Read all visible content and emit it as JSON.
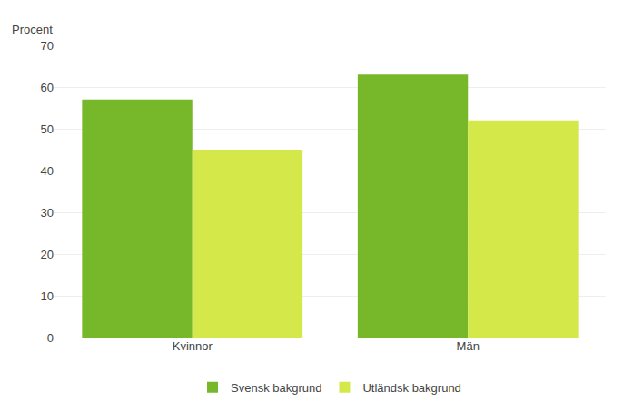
{
  "chart_data": {
    "type": "bar",
    "categories": [
      "Kvinnor",
      "Män"
    ],
    "series": [
      {
        "name": "Svensk bakgrund",
        "values": [
          57,
          63
        ],
        "color": "#76b82a"
      },
      {
        "name": "Utländsk bakgrund",
        "values": [
          45,
          52
        ],
        "color": "#d4e84a"
      }
    ],
    "ylabel": "Procent",
    "ylim": [
      0,
      70
    ],
    "yticks": [
      0,
      10,
      20,
      30,
      40,
      50,
      60,
      70
    ],
    "grid": true,
    "legend": "bottom"
  }
}
